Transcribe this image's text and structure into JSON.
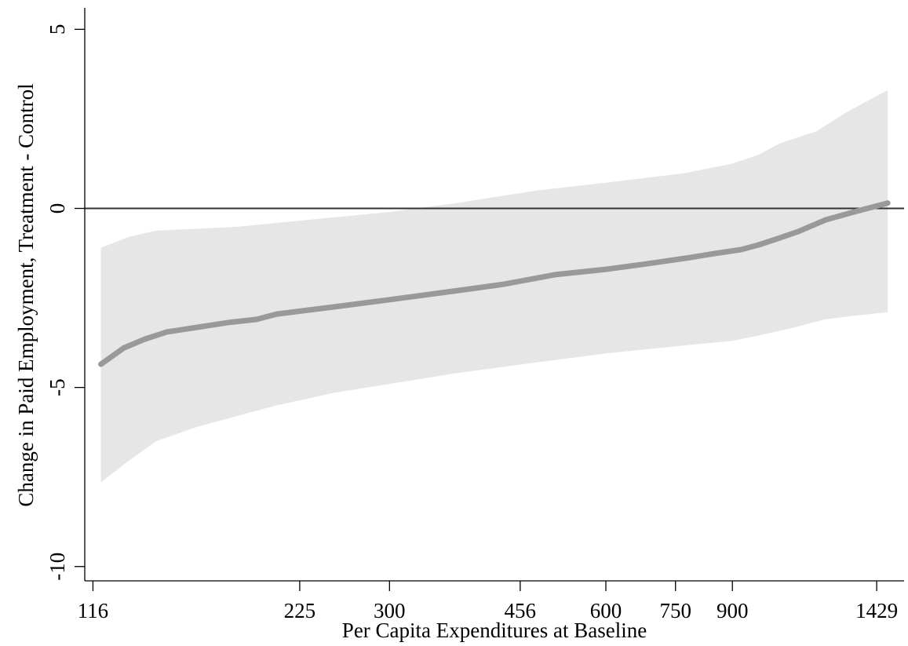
{
  "chart_data": {
    "type": "line",
    "title": "",
    "xlabel": "Per Capita Expenditures at Baseline",
    "ylabel": "Change in Paid Employment, Treatment - Control",
    "x_scale": "log",
    "xlim": [
      113,
      1560
    ],
    "ylim": [
      -10.4,
      5.6
    ],
    "x_ticks": [
      116,
      225,
      300,
      456,
      600,
      750,
      900,
      1429
    ],
    "x_tick_labels": [
      "116",
      "225",
      "300",
      "456",
      "600",
      "750",
      "900",
      "1429"
    ],
    "y_ticks": [
      5,
      0,
      -5,
      -10
    ],
    "y_tick_labels": [
      "5",
      "0",
      "-5",
      "-10"
    ],
    "reference_line_y": 0,
    "grid": false,
    "series": [
      {
        "role": "estimate",
        "color": "#999999",
        "x": [
          119,
          128,
          137,
          147,
          162,
          180,
          196,
          209,
          251,
          300,
          372,
          432,
          510,
          600,
          683,
          781,
          850,
          925,
          979,
          1038,
          1110,
          1213,
          1340,
          1480
        ],
        "y": [
          -4.35,
          -3.9,
          -3.65,
          -3.45,
          -3.32,
          -3.18,
          -3.1,
          -2.95,
          -2.75,
          -2.55,
          -2.3,
          -2.12,
          -1.85,
          -1.7,
          -1.55,
          -1.38,
          -1.26,
          -1.15,
          -1.02,
          -0.85,
          -0.65,
          -0.32,
          -0.08,
          0.15
        ]
      },
      {
        "role": "ci_upper",
        "color": "#e6e6e6",
        "x": [
          119,
          130,
          142,
          162,
          185,
          210,
          251,
          300,
          372,
          480,
          600,
          770,
          900,
          979,
          1048,
          1177,
          1289,
          1372,
          1480
        ],
        "y": [
          -1.1,
          -0.8,
          -0.62,
          -0.57,
          -0.51,
          -0.4,
          -0.25,
          -0.1,
          0.15,
          0.5,
          0.72,
          0.98,
          1.25,
          1.5,
          1.82,
          2.15,
          2.65,
          2.95,
          3.3
        ]
      },
      {
        "role": "ci_lower",
        "color": "#e6e6e6",
        "x": [
          119,
          130,
          142,
          162,
          180,
          209,
          251,
          300,
          372,
          480,
          600,
          750,
          900,
          979,
          1085,
          1210,
          1327,
          1480
        ],
        "y": [
          -7.65,
          -7.05,
          -6.5,
          -6.1,
          -5.85,
          -5.5,
          -5.15,
          -4.9,
          -4.6,
          -4.3,
          -4.05,
          -3.85,
          -3.7,
          -3.55,
          -3.35,
          -3.1,
          -3.0,
          -2.9
        ]
      }
    ]
  }
}
